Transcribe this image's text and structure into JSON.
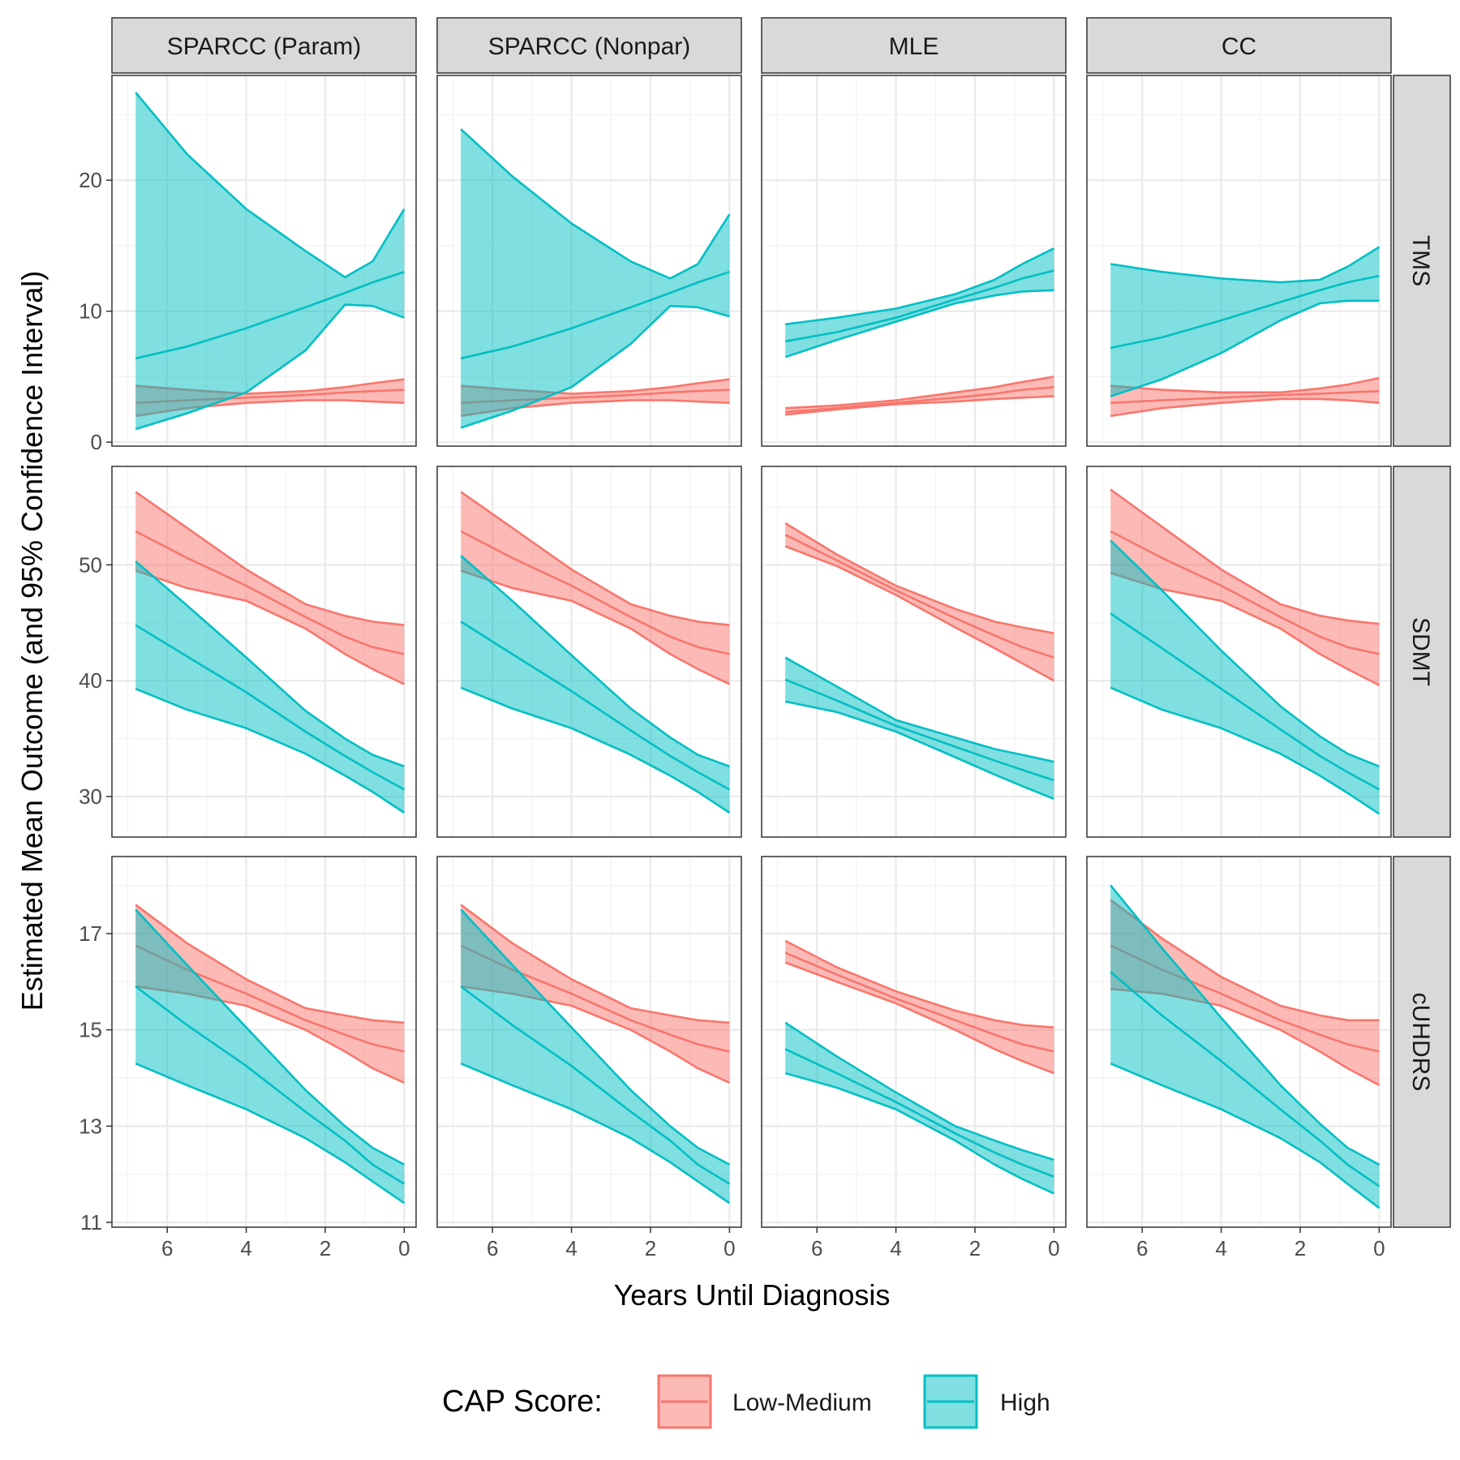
{
  "chart_data": {
    "type": "area",
    "title": "",
    "xlabel": "Years Until Diagnosis",
    "ylabel": "Estimated Mean Outcome (and 95% Confidence Interval)",
    "x_reversed": true,
    "xlim": [
      7.4,
      -0.3
    ],
    "x_ticks": [
      6,
      4,
      2,
      0
    ],
    "grid": true,
    "legend": {
      "title": "CAP Score:",
      "placement": "bottom"
    },
    "series_meta": [
      {
        "key": "low",
        "name": "Low-Medium",
        "color": "#F8766D"
      },
      {
        "key": "high",
        "name": "High",
        "color": "#00BFC4"
      }
    ],
    "columns": [
      "SPARCC (Param)",
      "SPARCC (Nonpar)",
      "MLE",
      "CC"
    ],
    "rows": [
      {
        "label": "TMS",
        "ylim": [
          -0.3,
          28
        ],
        "y_ticks": [
          0,
          10,
          20
        ]
      },
      {
        "label": "SDMT",
        "ylim": [
          26.5,
          58.5
        ],
        "y_ticks": [
          30,
          40,
          50
        ]
      },
      {
        "label": "cUHDRS",
        "ylim": [
          10.9,
          18.6
        ],
        "y_ticks": [
          11,
          13,
          15,
          17
        ]
      }
    ],
    "x": [
      6.8,
      5.5,
      4,
      2.5,
      1.5,
      0.8,
      0
    ],
    "panels": [
      [
        {
          "low": {
            "est": [
              3.0,
              3.2,
              3.4,
              3.6,
              3.8,
              3.9,
              4.0
            ],
            "lower": [
              2.0,
              2.6,
              3.0,
              3.2,
              3.2,
              3.1,
              3.0
            ],
            "upper": [
              4.3,
              4.0,
              3.7,
              3.9,
              4.2,
              4.5,
              4.8
            ]
          },
          "high": {
            "est": [
              6.4,
              7.3,
              8.7,
              10.3,
              11.4,
              12.2,
              13.0
            ],
            "lower": [
              1.0,
              2.2,
              3.8,
              7.0,
              10.5,
              10.4,
              9.5
            ],
            "upper": [
              26.7,
              22.0,
              17.8,
              14.6,
              12.6,
              13.8,
              17.8
            ]
          }
        },
        {
          "low": {
            "est": [
              3.0,
              3.2,
              3.4,
              3.6,
              3.8,
              3.9,
              4.0
            ],
            "lower": [
              2.0,
              2.6,
              3.0,
              3.2,
              3.2,
              3.1,
              3.0
            ],
            "upper": [
              4.3,
              4.0,
              3.7,
              3.9,
              4.2,
              4.5,
              4.8
            ]
          },
          "high": {
            "est": [
              6.4,
              7.3,
              8.7,
              10.3,
              11.4,
              12.2,
              13.0
            ],
            "lower": [
              1.1,
              2.4,
              4.2,
              7.5,
              10.4,
              10.3,
              9.6
            ],
            "upper": [
              23.9,
              20.3,
              16.7,
              13.8,
              12.5,
              13.6,
              17.4
            ]
          }
        },
        {
          "low": {
            "est": [
              2.3,
              2.6,
              3.0,
              3.4,
              3.7,
              4.0,
              4.2
            ],
            "lower": [
              2.1,
              2.5,
              2.9,
              3.1,
              3.3,
              3.4,
              3.5
            ],
            "upper": [
              2.6,
              2.8,
              3.2,
              3.8,
              4.2,
              4.6,
              5.0
            ]
          },
          "high": {
            "est": [
              7.7,
              8.4,
              9.5,
              10.9,
              11.8,
              12.5,
              13.1
            ],
            "lower": [
              6.5,
              7.8,
              9.2,
              10.6,
              11.2,
              11.5,
              11.6
            ],
            "upper": [
              9.0,
              9.5,
              10.2,
              11.3,
              12.4,
              13.6,
              14.8
            ]
          }
        },
        {
          "low": {
            "est": [
              3.0,
              3.2,
              3.4,
              3.6,
              3.7,
              3.8,
              3.9
            ],
            "lower": [
              2.0,
              2.6,
              3.0,
              3.3,
              3.3,
              3.2,
              3.0
            ],
            "upper": [
              4.3,
              4.0,
              3.8,
              3.8,
              4.1,
              4.4,
              4.9
            ]
          },
          "high": {
            "est": [
              7.2,
              8.0,
              9.3,
              10.7,
              11.6,
              12.2,
              12.7
            ],
            "lower": [
              3.5,
              4.8,
              6.8,
              9.3,
              10.6,
              10.8,
              10.8
            ],
            "upper": [
              13.6,
              13.0,
              12.5,
              12.2,
              12.4,
              13.4,
              14.9
            ]
          }
        }
      ],
      [
        {
          "low": {
            "est": [
              52.9,
              50.6,
              48.2,
              45.5,
              43.8,
              42.9,
              42.3
            ],
            "lower": [
              49.5,
              48.0,
              46.9,
              44.5,
              42.3,
              41.0,
              39.7
            ],
            "upper": [
              56.3,
              53.2,
              49.6,
              46.6,
              45.6,
              45.1,
              44.8
            ]
          },
          "high": {
            "est": [
              44.8,
              42.1,
              39.0,
              35.6,
              33.5,
              32.1,
              30.6
            ],
            "lower": [
              39.3,
              37.5,
              35.9,
              33.7,
              31.8,
              30.4,
              28.6
            ],
            "upper": [
              50.3,
              46.5,
              42.0,
              37.4,
              35.0,
              33.6,
              32.6
            ]
          }
        },
        {
          "low": {
            "est": [
              52.9,
              50.6,
              48.2,
              45.5,
              43.8,
              42.9,
              42.3
            ],
            "lower": [
              49.5,
              48.0,
              46.9,
              44.5,
              42.3,
              41.0,
              39.7
            ],
            "upper": [
              56.3,
              53.2,
              49.6,
              46.6,
              45.6,
              45.1,
              44.8
            ]
          },
          "high": {
            "est": [
              45.1,
              42.3,
              39.1,
              35.7,
              33.5,
              32.1,
              30.6
            ],
            "lower": [
              39.4,
              37.6,
              35.9,
              33.6,
              31.8,
              30.4,
              28.6
            ],
            "upper": [
              50.8,
              46.9,
              42.2,
              37.6,
              35.1,
              33.6,
              32.6
            ]
          }
        },
        {
          "low": {
            "est": [
              52.6,
              50.4,
              47.8,
              45.4,
              43.9,
              42.9,
              42.0
            ],
            "lower": [
              51.6,
              49.9,
              47.4,
              44.6,
              42.8,
              41.5,
              40.0
            ],
            "upper": [
              53.6,
              50.9,
              48.2,
              46.2,
              45.1,
              44.6,
              44.1
            ]
          },
          "high": {
            "est": [
              40.1,
              38.3,
              36.1,
              34.3,
              33.1,
              32.3,
              31.4
            ],
            "lower": [
              38.2,
              37.3,
              35.6,
              33.4,
              31.9,
              30.9,
              29.8
            ],
            "upper": [
              42.0,
              39.5,
              36.6,
              35.1,
              34.1,
              33.6,
              33.0
            ]
          }
        },
        {
          "low": {
            "est": [
              52.9,
              50.6,
              48.2,
              45.5,
              43.8,
              42.9,
              42.3
            ],
            "lower": [
              49.3,
              47.9,
              46.9,
              44.5,
              42.3,
              41.0,
              39.6
            ],
            "upper": [
              56.5,
              53.3,
              49.6,
              46.6,
              45.6,
              45.2,
              44.9
            ]
          },
          "high": {
            "est": [
              45.8,
              42.8,
              39.3,
              35.8,
              33.5,
              32.1,
              30.6
            ],
            "lower": [
              39.4,
              37.5,
              35.9,
              33.7,
              31.8,
              30.3,
              28.5
            ],
            "upper": [
              52.1,
              47.8,
              42.6,
              37.8,
              35.2,
              33.7,
              32.6
            ]
          }
        }
      ],
      [
        {
          "low": {
            "est": [
              16.75,
              16.25,
              15.75,
              15.2,
              14.9,
              14.7,
              14.55
            ],
            "lower": [
              15.9,
              15.75,
              15.5,
              15.0,
              14.55,
              14.2,
              13.9
            ],
            "upper": [
              17.6,
              16.8,
              16.05,
              15.45,
              15.3,
              15.2,
              15.15
            ]
          },
          "high": {
            "est": [
              15.9,
              15.1,
              14.25,
              13.3,
              12.7,
              12.2,
              11.8
            ],
            "lower": [
              14.3,
              13.85,
              13.35,
              12.75,
              12.25,
              11.85,
              11.4
            ],
            "upper": [
              17.5,
              16.35,
              15.05,
              13.75,
              13.0,
              12.55,
              12.2
            ]
          }
        },
        {
          "low": {
            "est": [
              16.75,
              16.25,
              15.75,
              15.2,
              14.9,
              14.7,
              14.55
            ],
            "lower": [
              15.9,
              15.75,
              15.5,
              15.0,
              14.55,
              14.2,
              13.9
            ],
            "upper": [
              17.6,
              16.8,
              16.05,
              15.45,
              15.3,
              15.2,
              15.15
            ]
          },
          "high": {
            "est": [
              15.9,
              15.1,
              14.25,
              13.3,
              12.7,
              12.2,
              11.8
            ],
            "lower": [
              14.3,
              13.85,
              13.35,
              12.75,
              12.25,
              11.85,
              11.4
            ],
            "upper": [
              17.5,
              16.35,
              15.05,
              13.75,
              13.0,
              12.55,
              12.2
            ]
          }
        },
        {
          "low": {
            "est": [
              16.6,
              16.15,
              15.65,
              15.2,
              14.9,
              14.7,
              14.55
            ],
            "lower": [
              16.4,
              16.0,
              15.55,
              15.0,
              14.6,
              14.35,
              14.1
            ],
            "upper": [
              16.85,
              16.3,
              15.8,
              15.4,
              15.2,
              15.1,
              15.05
            ]
          },
          "high": {
            "est": [
              14.6,
              14.1,
              13.5,
              12.85,
              12.45,
              12.2,
              11.95
            ],
            "lower": [
              14.1,
              13.8,
              13.35,
              12.7,
              12.2,
              11.9,
              11.6
            ],
            "upper": [
              15.15,
              14.45,
              13.7,
              13.0,
              12.7,
              12.5,
              12.3
            ]
          }
        },
        {
          "low": {
            "est": [
              16.75,
              16.25,
              15.75,
              15.2,
              14.9,
              14.7,
              14.55
            ],
            "lower": [
              15.85,
              15.75,
              15.5,
              15.0,
              14.55,
              14.2,
              13.85
            ],
            "upper": [
              17.7,
              16.9,
              16.1,
              15.5,
              15.3,
              15.2,
              15.2
            ]
          },
          "high": {
            "est": [
              16.2,
              15.3,
              14.35,
              13.35,
              12.7,
              12.2,
              11.75
            ],
            "lower": [
              14.3,
              13.85,
              13.35,
              12.75,
              12.25,
              11.8,
              11.3
            ],
            "upper": [
              18.0,
              16.7,
              15.25,
              13.85,
              13.05,
              12.55,
              12.2
            ]
          }
        }
      ]
    ]
  }
}
